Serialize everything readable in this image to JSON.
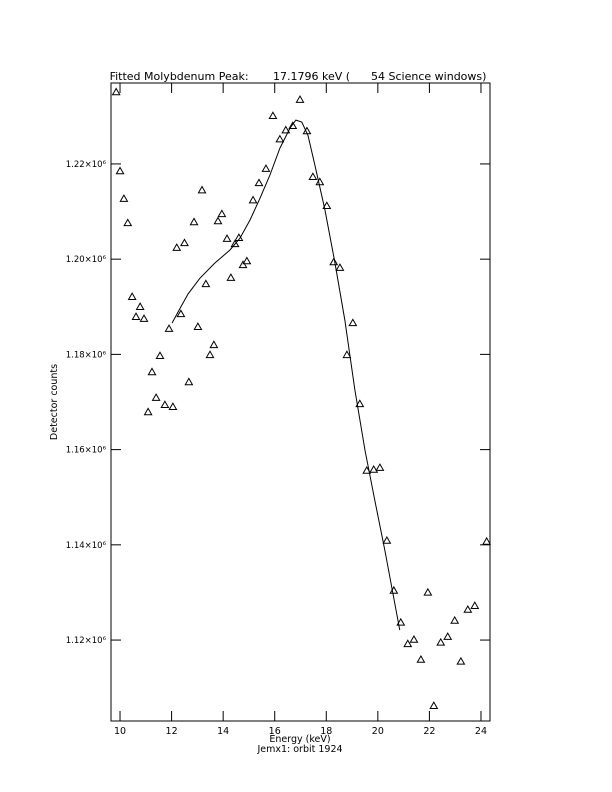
{
  "chart_data": {
    "type": "scatter",
    "title": "Fitted Molybdenum Peak:       17.1796 keV (      54 Science windows)",
    "xlabel": "Energy (keV)",
    "subtitle": "Jemx1: orbit 1924",
    "ylabel": "Detector counts",
    "color": "#000000",
    "xlim": [
      9.65,
      24.35
    ],
    "ylim": [
      1103000,
      1237000
    ],
    "xticks": [
      10,
      12,
      14,
      16,
      18,
      20,
      22,
      24
    ],
    "yticks": [
      {
        "value": 1120000,
        "label": "1.12×10⁶"
      },
      {
        "value": 1140000,
        "label": "1.14×10⁶"
      },
      {
        "value": 1160000,
        "label": "1.16×10⁶"
      },
      {
        "value": 1180000,
        "label": "1.18×10⁶"
      },
      {
        "value": 1200000,
        "label": "1.20×10⁶"
      },
      {
        "value": 1220000,
        "label": "1.22×10⁶"
      }
    ],
    "series": [
      {
        "marker": "triangle",
        "x": [
          9.85,
          10.0,
          10.15,
          10.3,
          10.47,
          10.62,
          10.78,
          10.93,
          11.09,
          11.24,
          11.4,
          11.55,
          11.74,
          11.9,
          12.05,
          12.2,
          12.36,
          12.5,
          12.67,
          12.87,
          13.02,
          13.18,
          13.33,
          13.49,
          13.64,
          13.8,
          13.95,
          14.15,
          14.3,
          14.46,
          14.61,
          14.77,
          14.92,
          15.16,
          15.39,
          15.66,
          15.93,
          16.2,
          16.43,
          16.7,
          16.98,
          17.25,
          17.48,
          17.75,
          18.02,
          18.29,
          18.53,
          18.8,
          19.03,
          19.3,
          19.57,
          19.84,
          20.08,
          20.35,
          20.62,
          20.89,
          21.16,
          21.4,
          21.67,
          21.94,
          22.17,
          22.44,
          22.71,
          22.98,
          23.22,
          23.49,
          23.76,
          24.22
        ],
        "values": [
          1235100,
          1218500,
          1212700,
          1207600,
          1192100,
          1187900,
          1190000,
          1187500,
          1167900,
          1176300,
          1170900,
          1179700,
          1169400,
          1185400,
          1169000,
          1202400,
          1188500,
          1203400,
          1174200,
          1207800,
          1185800,
          1214500,
          1194800,
          1179900,
          1182000,
          1208000,
          1209500,
          1204300,
          1196100,
          1203200,
          1204500,
          1198800,
          1199600,
          1212400,
          1216000,
          1219000,
          1230100,
          1225200,
          1227100,
          1228000,
          1233500,
          1226900,
          1217300,
          1216200,
          1211200,
          1199400,
          1198200,
          1179900,
          1186600,
          1169600,
          1155600,
          1155800,
          1156200,
          1140900,
          1130400,
          1123700,
          1119200,
          1120100,
          1115900,
          1130000,
          1106200,
          1119500,
          1120700,
          1124100,
          1115500,
          1126400,
          1127200,
          1140700
        ]
      },
      {
        "style": "line",
        "x": [
          12.02,
          12.33,
          12.64,
          13.1,
          13.68,
          14.26,
          14.65,
          15.04,
          15.43,
          15.81,
          16.2,
          16.59,
          16.82,
          17.05,
          17.29,
          17.56,
          17.95,
          18.33,
          18.72,
          19.11,
          19.5,
          19.88,
          20.27,
          20.85
        ],
        "values": [
          1186600,
          1189700,
          1192700,
          1196000,
          1199200,
          1201900,
          1204400,
          1208200,
          1212800,
          1217600,
          1223300,
          1227500,
          1229200,
          1228800,
          1226000,
          1219700,
          1210300,
          1199400,
          1187200,
          1172500,
          1159900,
          1149400,
          1138900,
          1122100
        ]
      }
    ]
  }
}
